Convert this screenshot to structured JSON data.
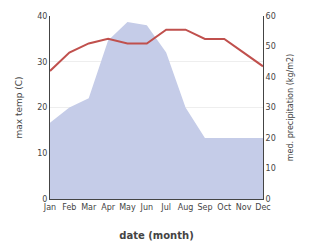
{
  "chart_data": {
    "type": "line",
    "xlabel": "date (month)",
    "ylabel": "max temp (C)",
    "y2label": "med. precipitation (kg/m2)",
    "categories": [
      "Jan",
      "Feb",
      "Mar",
      "Apr",
      "May",
      "Jun",
      "Jul",
      "Aug",
      "Sep",
      "Oct",
      "Nov",
      "Dec"
    ],
    "series": [
      {
        "type": "area",
        "axis": "y2",
        "color": "#c5cce8",
        "values": [
          25,
          30,
          33,
          52,
          58,
          57,
          48,
          30,
          20,
          20,
          20,
          20
        ]
      },
      {
        "type": "line",
        "color": "#c0504d",
        "values": [
          28,
          32,
          34,
          35,
          34,
          34,
          37,
          37,
          35,
          35,
          32,
          29
        ]
      }
    ],
    "ylim": [
      0,
      40
    ],
    "yticks": [
      0,
      10,
      20,
      30,
      40
    ],
    "y2lim": [
      0,
      60
    ],
    "y2ticks": [
      0,
      10,
      20,
      30,
      40,
      50,
      60
    ],
    "grid": true
  }
}
